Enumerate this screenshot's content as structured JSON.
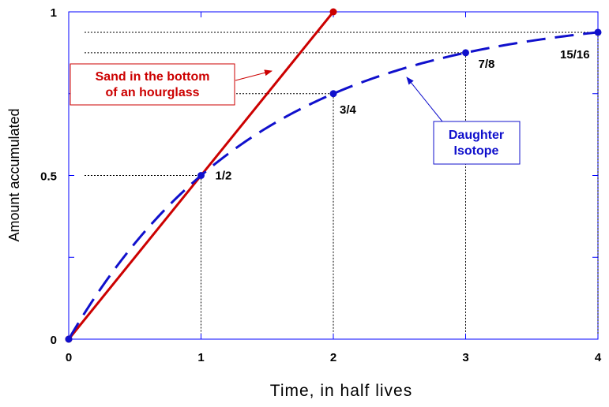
{
  "chart_data": {
    "type": "line",
    "xlabel": "Time, in half lives",
    "ylabel": "Amount accumulated",
    "xlim": [
      0,
      4
    ],
    "ylim": [
      0,
      1
    ],
    "x_ticks": [
      0,
      1,
      2,
      3,
      4
    ],
    "x_tick_labels": [
      "0",
      "1",
      "2",
      "3",
      "4"
    ],
    "y_ticks": [
      0,
      0.5,
      1
    ],
    "y_tick_labels": [
      "0",
      "0.5",
      "1"
    ],
    "grid": false,
    "series": [
      {
        "key": "sand",
        "style": "solid",
        "color": "#cc0000",
        "x": [
          0,
          2
        ],
        "y": [
          0,
          1
        ]
      },
      {
        "key": "daughter",
        "style": "dashed",
        "color": "#1010cc",
        "x": [
          0,
          1,
          2,
          3,
          4
        ],
        "y": [
          0,
          0.5,
          0.75,
          0.875,
          0.9375
        ]
      }
    ],
    "point_labels": [
      {
        "x": 1,
        "y": 0.5,
        "text": "1/2"
      },
      {
        "x": 2,
        "y": 0.75,
        "text": "3/4"
      },
      {
        "x": 3,
        "y": 0.875,
        "text": "7/8"
      },
      {
        "x": 4,
        "y": 0.9375,
        "text": "15/16"
      }
    ],
    "annotations": [
      {
        "key": "sand",
        "lines": [
          "Sand in the bottom",
          "of an hourglass"
        ],
        "color": "#cc0000"
      },
      {
        "key": "daughter",
        "lines": [
          "Daughter",
          "Isotope"
        ],
        "color": "#1010cc"
      }
    ]
  }
}
